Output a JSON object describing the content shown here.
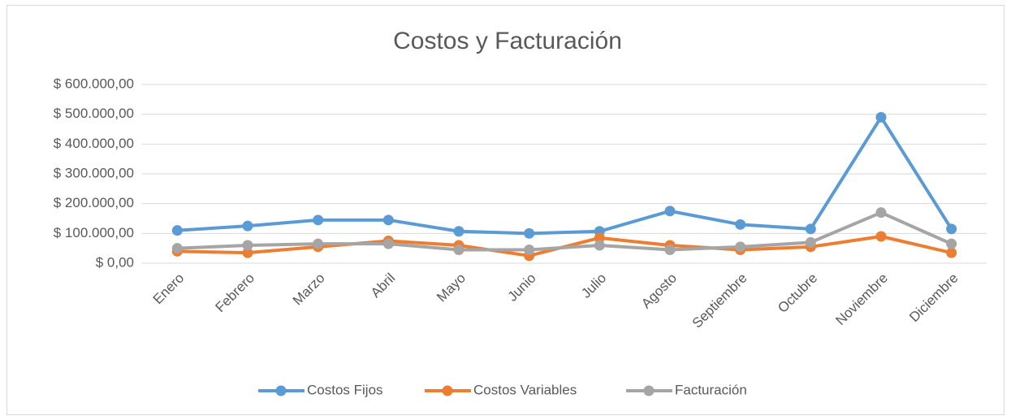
{
  "chart_data": {
    "type": "line",
    "title": "Costos y Facturación",
    "categories": [
      "Enero",
      "Febrero",
      "Marzo",
      "Abril",
      "Mayo",
      "Junio",
      "Julio",
      "Agosto",
      "Septiembre",
      "Octubre",
      "Noviembre",
      "Diciembre"
    ],
    "series": [
      {
        "name": "Costos Fijos",
        "color": "#5b9bd5",
        "values": [
          110000,
          125000,
          145000,
          145000,
          107000,
          100000,
          107000,
          175000,
          130000,
          115000,
          490000,
          115000
        ]
      },
      {
        "name": "Costos Variables",
        "color": "#ed7d31",
        "values": [
          40000,
          35000,
          55000,
          75000,
          60000,
          25000,
          85000,
          60000,
          45000,
          55000,
          90000,
          35000
        ]
      },
      {
        "name": "Facturación",
        "color": "#a5a5a5",
        "values": [
          50000,
          60000,
          65000,
          65000,
          45000,
          45000,
          60000,
          45000,
          55000,
          70000,
          170000,
          65000
        ]
      }
    ],
    "ylim": [
      0,
      600000
    ],
    "yticks": [
      {
        "value": 0,
        "label": "$ 0,00"
      },
      {
        "value": 100000,
        "label": "$ 100.000,00"
      },
      {
        "value": 200000,
        "label": "$ 200.000,00"
      },
      {
        "value": 300000,
        "label": "$ 300.000,00"
      },
      {
        "value": 400000,
        "label": "$ 400.000,00"
      },
      {
        "value": 500000,
        "label": "$ 500.000,00"
      },
      {
        "value": 600000,
        "label": "$ 600.000,00"
      }
    ],
    "grid": true,
    "legend": "bottom"
  }
}
